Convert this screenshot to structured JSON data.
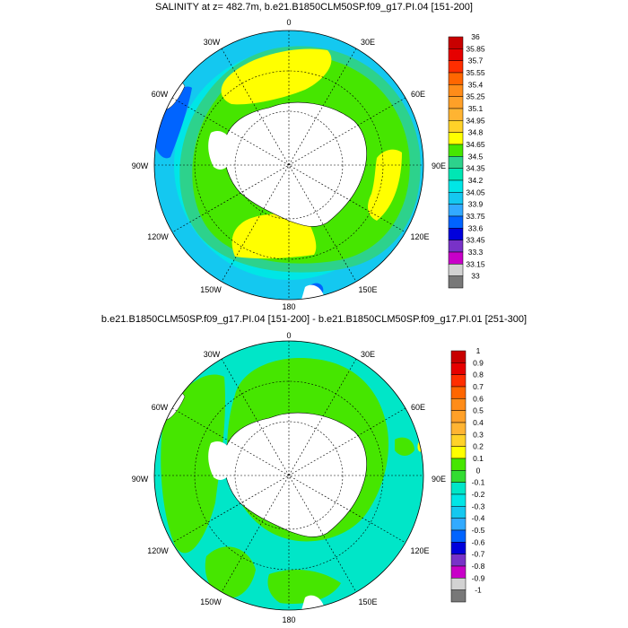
{
  "panels": [
    {
      "title": "SALINITY at z= 482.7m, b.e21.B1850CLM50SP.f09_g17.PI.04 [151-200]",
      "lon_labels": {
        "n": "0",
        "ne": "30E",
        "nw": "30W",
        "e1": "60E",
        "w1": "60W",
        "e": "90E",
        "w": "90W",
        "se1": "120E",
        "sw1": "120W",
        "se2": "150E",
        "sw2": "150W",
        "s": "180"
      },
      "colorbar": {
        "labels": [
          "36",
          "35.85",
          "35.7",
          "35.55",
          "35.4",
          "35.25",
          "35.1",
          "34.95",
          "34.8",
          "34.65",
          "34.5",
          "34.35",
          "34.2",
          "34.05",
          "33.9",
          "33.75",
          "33.6",
          "33.45",
          "33.3",
          "33.15",
          "33"
        ],
        "colors": [
          "#c80000",
          "#e60000",
          "#ff2e00",
          "#ff6600",
          "#ff8c19",
          "#ffa028",
          "#ffb432",
          "#ffd228",
          "#ffff00",
          "#46e600",
          "#2dd28c",
          "#00e6b4",
          "#00e6e6",
          "#14c8f0",
          "#32aaff",
          "#0064ff",
          "#0000dc",
          "#7832c8",
          "#c800c8",
          "#d2d2d2",
          "#787878"
        ]
      }
    },
    {
      "title": "b.e21.B1850CLM50SP.f09_g17.PI.04 [151-200] - b.e21.B1850CLM50SP.f09_g17.PI.01 [251-300]",
      "lon_labels": {
        "n": "0",
        "ne": "30E",
        "nw": "30W",
        "e1": "60E",
        "w1": "60W",
        "e": "90E",
        "w": "90W",
        "se1": "120E",
        "sw1": "120W",
        "se2": "150E",
        "sw2": "150W",
        "s": "180"
      },
      "colorbar": {
        "labels": [
          "1",
          "0.9",
          "0.8",
          "0.7",
          "0.6",
          "0.5",
          "0.4",
          "0.3",
          "0.2",
          "0.1",
          "0",
          "-0.1",
          "-0.2",
          "-0.3",
          "-0.4",
          "-0.5",
          "-0.6",
          "-0.7",
          "-0.8",
          "-0.9",
          "-1"
        ],
        "colors": [
          "#c80000",
          "#e60000",
          "#ff2e00",
          "#ff6600",
          "#ff8c19",
          "#ffa028",
          "#ffb432",
          "#ffd228",
          "#ffff00",
          "#46e600",
          "#32dc32",
          "#00e6c8",
          "#00e6e6",
          "#14c8f0",
          "#32aaff",
          "#0064ff",
          "#0000dc",
          "#7832c8",
          "#c800c8",
          "#d2d2d2",
          "#787878"
        ]
      }
    }
  ],
  "map_colors": {
    "land": "#ffffff",
    "top_ocean_outer": "#14c8f0",
    "top_ocean_mid": "#00e6e6",
    "top_ring": "#2dd28c",
    "top_inner": "#46e600",
    "top_high": "#ffff00",
    "top_low": "#0064ff",
    "bot_ocean": "#00e6c8",
    "bot_pos": "#46e600",
    "grid": "#000000"
  }
}
